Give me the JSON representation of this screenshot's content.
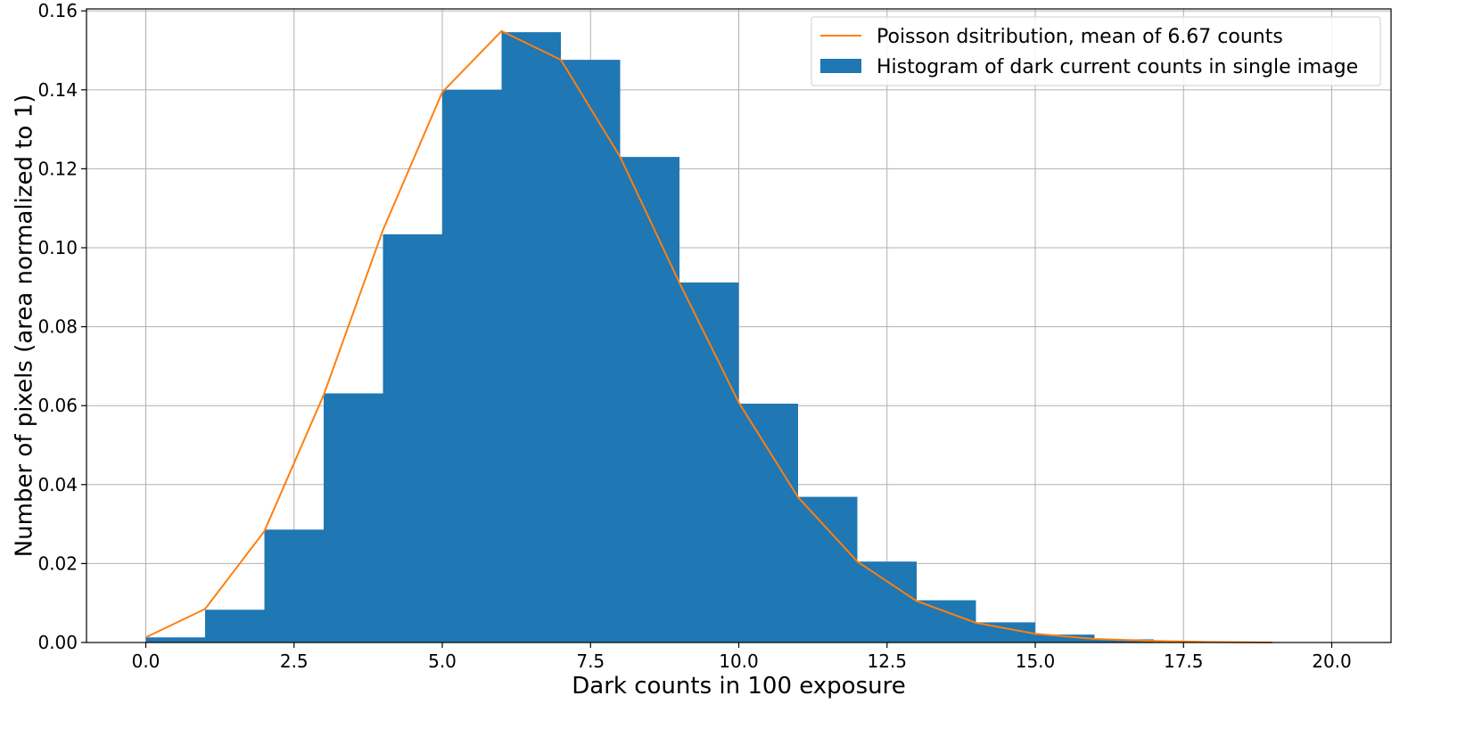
{
  "chart_data": {
    "type": "bar",
    "title": "",
    "xlabel": "Dark counts in 100 exposure",
    "ylabel": "Number of pixels (area normalized to 1)",
    "xlim": [
      -1.0,
      21.0
    ],
    "ylim": [
      0.0,
      0.1605
    ],
    "xticks": [
      0.0,
      2.5,
      5.0,
      7.5,
      10.0,
      12.5,
      15.0,
      17.5,
      20.0
    ],
    "xtick_labels": [
      "0.0",
      "2.5",
      "5.0",
      "7.5",
      "10.0",
      "12.5",
      "15.0",
      "17.5",
      "20.0"
    ],
    "yticks": [
      0.0,
      0.02,
      0.04,
      0.06,
      0.08,
      0.1,
      0.12,
      0.14,
      0.16
    ],
    "ytick_labels": [
      "0.00",
      "0.02",
      "0.04",
      "0.06",
      "0.08",
      "0.10",
      "0.12",
      "0.14",
      "0.16"
    ],
    "grid": true,
    "legend_position": "top-right",
    "series": [
      {
        "name": "Histogram of dark current counts in single image",
        "type": "histogram",
        "color": "#1f77b4",
        "bin_edges": [
          0,
          1,
          2,
          3,
          4,
          5,
          6,
          7,
          8,
          9,
          10,
          11,
          12,
          13,
          14,
          15,
          16,
          17,
          18,
          19,
          20
        ],
        "values": [
          0.0013,
          0.0083,
          0.0286,
          0.0631,
          0.1034,
          0.14,
          0.1546,
          0.1476,
          0.123,
          0.0912,
          0.0605,
          0.0369,
          0.0205,
          0.0107,
          0.0051,
          0.002,
          0.0008,
          0.0003,
          0.0001,
          0.0001
        ]
      },
      {
        "name": "Poisson dsitribution, mean of  6.67 counts",
        "type": "line",
        "color": "#ff7f0e",
        "x": [
          0,
          1,
          2,
          3,
          4,
          5,
          6,
          7,
          8,
          9,
          10,
          11,
          12,
          13,
          14,
          15,
          16,
          17,
          18,
          19
        ],
        "y": [
          0.0013,
          0.0085,
          0.0282,
          0.0627,
          0.1045,
          0.1394,
          0.1549,
          0.1476,
          0.123,
          0.0911,
          0.0608,
          0.0368,
          0.0205,
          0.0105,
          0.005,
          0.0022,
          0.0009,
          0.0004,
          0.0001,
          0.0
        ]
      }
    ]
  }
}
